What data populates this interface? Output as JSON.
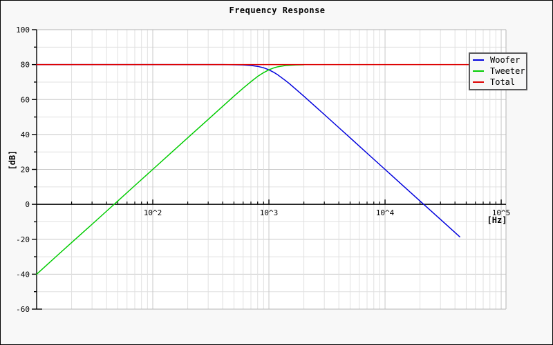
{
  "window": {
    "background": "#f8f8f8",
    "border_color": "#000000",
    "plot_background": "#ffffff"
  },
  "chart_data": {
    "type": "line",
    "title": "Frequency Response",
    "xlabel": "[Hz]",
    "ylabel": "[dB]",
    "x_scale": "log",
    "xlim": [
      10,
      110000
    ],
    "ylim": [
      -60,
      100
    ],
    "y_major_step": 20,
    "y_minor_step": 10,
    "grid": true,
    "legend_position": "top-right",
    "x_ticks": [
      {
        "label": "10^2",
        "value": 100
      },
      {
        "label": "10^3",
        "value": 1000
      },
      {
        "label": "10^4",
        "value": 10000
      },
      {
        "label": "10^5",
        "value": 100000
      }
    ],
    "y_ticks": [
      {
        "label": "100",
        "value": 100
      },
      {
        "label": "80",
        "value": 80
      },
      {
        "label": "60",
        "value": 60
      },
      {
        "label": "40",
        "value": 40
      },
      {
        "label": "20",
        "value": 20
      },
      {
        "label": "0",
        "value": 0
      },
      {
        "label": "-20",
        "value": -20
      },
      {
        "label": "-40",
        "value": -40
      },
      {
        "label": "-60",
        "value": -60
      }
    ],
    "colors": {
      "grid_minor": "#e0e0e0",
      "grid_major": "#c8c8c8",
      "plot_border": "#b4b4b4",
      "axis": "#000000"
    },
    "series": [
      {
        "name": "Woofer",
        "color": "#0000dd",
        "points": [
          [
            10,
            80
          ],
          [
            50,
            80
          ],
          [
            100,
            80
          ],
          [
            200,
            80
          ],
          [
            300,
            80
          ],
          [
            400,
            80
          ],
          [
            500,
            79.9
          ],
          [
            600,
            79.8
          ],
          [
            700,
            79.5
          ],
          [
            800,
            79.0
          ],
          [
            900,
            78.2
          ],
          [
            1000,
            77.0
          ],
          [
            1100,
            75.6
          ],
          [
            1200,
            74.0
          ],
          [
            1400,
            70.7
          ],
          [
            1500,
            69.1
          ],
          [
            1700,
            66.0
          ],
          [
            2000,
            61.9
          ],
          [
            2500,
            56.1
          ],
          [
            3000,
            51.4
          ],
          [
            4000,
            43.9
          ],
          [
            5000,
            38.1
          ],
          [
            7000,
            29.3
          ],
          [
            10000,
            20.0
          ],
          [
            14000,
            11.2
          ],
          [
            20000,
            1.9
          ],
          [
            30000,
            -8.6
          ],
          [
            44000,
            -18.6
          ]
        ]
      },
      {
        "name": "Tweeter",
        "color": "#00cc00",
        "points": [
          [
            10,
            -40
          ],
          [
            15,
            -29.4
          ],
          [
            20,
            -21.9
          ],
          [
            30,
            -11.4
          ],
          [
            40,
            -3.9
          ],
          [
            50,
            1.9
          ],
          [
            70,
            10.7
          ],
          [
            100,
            20.0
          ],
          [
            150,
            30.6
          ],
          [
            200,
            38.1
          ],
          [
            300,
            48.6
          ],
          [
            400,
            56.1
          ],
          [
            500,
            61.9
          ],
          [
            600,
            66.5
          ],
          [
            700,
            70.2
          ],
          [
            800,
            73.2
          ],
          [
            900,
            75.4
          ],
          [
            1000,
            77.0
          ],
          [
            1100,
            78.1
          ],
          [
            1200,
            78.8
          ],
          [
            1400,
            79.5
          ],
          [
            1500,
            79.6
          ],
          [
            1700,
            79.8
          ],
          [
            2000,
            79.9
          ]
        ]
      },
      {
        "name": "Total",
        "color": "#dd0000",
        "points": [
          [
            10,
            80
          ],
          [
            110000,
            80
          ]
        ]
      }
    ]
  }
}
